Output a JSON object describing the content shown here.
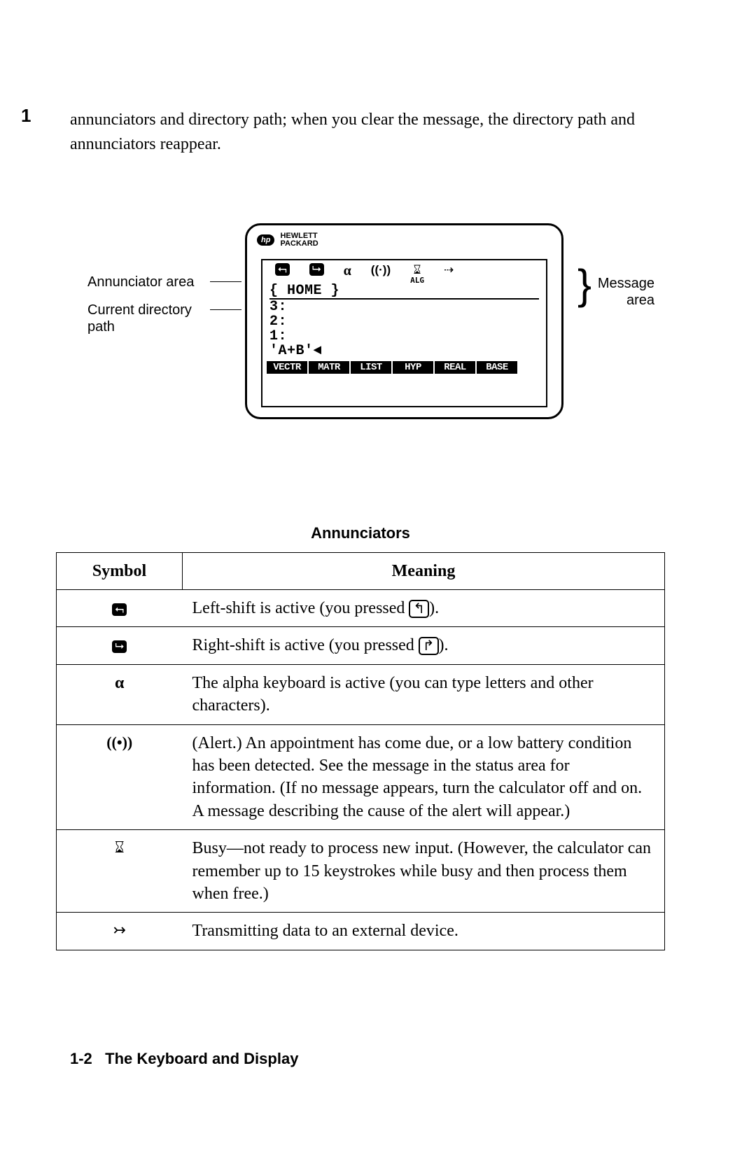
{
  "sideNumber": "1",
  "intro": "annunciators and directory path; when you clear the message, the directory path and annunciators reappear.",
  "diagramLabels": {
    "annunciatorArea": "Annunciator area",
    "currentDirectory": "Current directory",
    "path": "path",
    "messageArea": "Message",
    "area": "area"
  },
  "hp": {
    "logo": "hp",
    "line1": "HEWLETT",
    "line2": "PACKARD"
  },
  "screen": {
    "algLabel": "ALG",
    "pathLine": "{ HOME }",
    "stack": [
      "3:",
      "2:",
      "1:",
      "'A+B'◄"
    ],
    "softkeys": [
      "VECTR",
      "MATR",
      "LIST",
      "HYP",
      "REAL",
      "BASE"
    ]
  },
  "tableTitle": "Annunciators",
  "headers": {
    "symbol": "Symbol",
    "meaning": "Meaning"
  },
  "rows": [
    {
      "sym_html": "<span class=\"shift-icon-l\">⮢</span>",
      "mean_html": "Left-shift is active (you pressed <span class=\"keycap\">↰</span>)."
    },
    {
      "sym_html": "<span class=\"shift-icon-r\">⮡</span>",
      "mean_html": "Right-shift is active (you pressed <span class=\"keycap\">↱</span>)."
    },
    {
      "sym_html": "<b style=\"font-family:Georgia;font-size:24px;\">α</b>",
      "mean_html": "The alpha keyboard is active (you can type letters and other characters)."
    },
    {
      "sym_html": "<b>((•))</b>",
      "mean_html": "(Alert.) An appointment has come due, or a low battery condition has been detected. See the message in the status area for information. (If no message appears, turn the calculator off and on. A message describing the cause of the alert will appear.)"
    },
    {
      "sym_html": "<span style=\"font-size:22px;\">⌛&#xFE0E;</span>",
      "mean_html": "Busy—not ready to process new input. (However, the calculator can remember up to 15 keystrokes while busy and then process them when free.)"
    },
    {
      "sym_html": "↣",
      "mean_html": "Transmitting data to an external device."
    }
  ],
  "footer": {
    "page": "1-2",
    "title": "The Keyboard and Display"
  }
}
